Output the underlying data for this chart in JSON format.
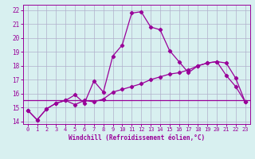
{
  "x_values": [
    0,
    1,
    2,
    3,
    4,
    5,
    6,
    7,
    8,
    9,
    10,
    11,
    12,
    13,
    14,
    15,
    16,
    17,
    18,
    19,
    20,
    21,
    22,
    23
  ],
  "windchill": [
    14.8,
    14.1,
    14.9,
    15.3,
    15.5,
    15.9,
    15.3,
    16.9,
    16.1,
    18.7,
    19.5,
    21.8,
    21.9,
    20.8,
    20.6,
    19.1,
    18.3,
    17.5,
    18.0,
    18.2,
    18.3,
    17.3,
    16.5,
    15.4
  ],
  "temp_line": [
    14.8,
    14.1,
    14.9,
    15.3,
    15.5,
    15.2,
    15.5,
    15.4,
    15.6,
    16.1,
    16.3,
    16.5,
    16.7,
    17.0,
    17.2,
    17.4,
    17.5,
    17.7,
    18.0,
    18.2,
    18.3,
    18.2,
    17.1,
    15.4
  ],
  "flat_line_y": 15.5,
  "line_color": "#990099",
  "bg_color": "#d8f0f0",
  "grid_color": "#b0b0cc",
  "ylim": [
    13.8,
    22.4
  ],
  "xlim": [
    -0.5,
    23.5
  ],
  "yticks": [
    14,
    15,
    16,
    17,
    18,
    19,
    20,
    21,
    22
  ],
  "xticks": [
    0,
    1,
    2,
    3,
    4,
    5,
    6,
    7,
    8,
    9,
    10,
    11,
    12,
    13,
    14,
    15,
    16,
    17,
    18,
    19,
    20,
    21,
    22,
    23
  ],
  "xlabel": "Windchill (Refroidissement éolien,°C)",
  "marker": "D",
  "markersize": 2.2,
  "linewidth": 0.9
}
